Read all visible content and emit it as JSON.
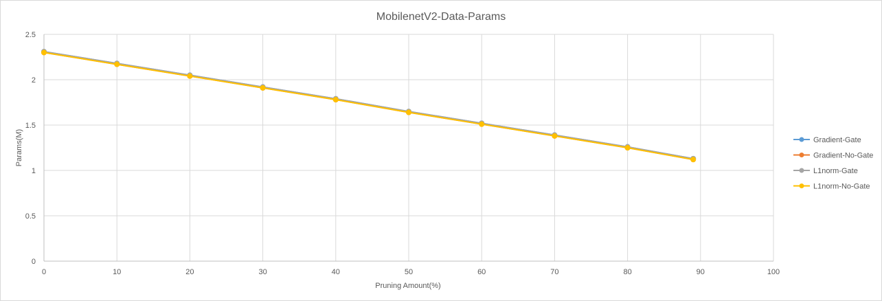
{
  "chart_data": {
    "type": "line",
    "title": "MobilenetV2-Data-Params",
    "xlabel": "Pruning Amount(%)",
    "ylabel": "Params(M)",
    "xlim": [
      0,
      100
    ],
    "ylim": [
      0,
      2.5
    ],
    "xticks": [
      "0",
      "10",
      "20",
      "30",
      "40",
      "50",
      "60",
      "70",
      "80",
      "90",
      "100"
    ],
    "yticks": [
      "0",
      "0.5",
      "1",
      "1.5",
      "2",
      "2.5"
    ],
    "grid": true,
    "legend_position": "right",
    "x": [
      0,
      10,
      20,
      30,
      40,
      50,
      60,
      70,
      80,
      89
    ],
    "series": [
      {
        "name": "Gradient-Gate",
        "color": "#5b9bd5",
        "values": [
          2.31,
          2.18,
          2.05,
          1.92,
          1.79,
          1.65,
          1.52,
          1.39,
          1.26,
          1.13
        ]
      },
      {
        "name": "Gradient-No-Gate",
        "color": "#ed7d31",
        "values": [
          2.3,
          2.17,
          2.04,
          1.91,
          1.78,
          1.64,
          1.51,
          1.38,
          1.25,
          1.12
        ]
      },
      {
        "name": "L1norm-Gate",
        "color": "#a5a5a5",
        "values": [
          2.31,
          2.18,
          2.05,
          1.92,
          1.79,
          1.65,
          1.52,
          1.39,
          1.26,
          1.13
        ]
      },
      {
        "name": "L1norm-No-Gate",
        "color": "#ffc000",
        "values": [
          2.3,
          2.17,
          2.04,
          1.91,
          1.78,
          1.64,
          1.51,
          1.38,
          1.25,
          1.12
        ]
      }
    ]
  }
}
